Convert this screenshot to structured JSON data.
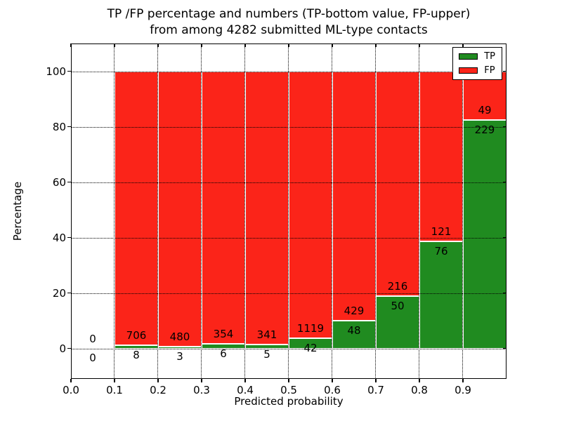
{
  "title": {
    "line1": "TP /FP percentage and numbers (TP-bottom value, FP-upper)",
    "line2": "from among 4282 submitted ML-type contacts"
  },
  "chart_data": {
    "type": "bar",
    "variant": "stacked-100-percent",
    "title": "TP /FP percentage and numbers (TP-bottom value, FP-upper)\nfrom among 4282 submitted ML-type contacts",
    "xlabel": "Predicted probability",
    "ylabel": "Percentage",
    "xlim": [
      0.0,
      1.0
    ],
    "ylim": [
      -11,
      110
    ],
    "xticks": [
      "0.0",
      "0.1",
      "0.2",
      "0.3",
      "0.4",
      "0.5",
      "0.6",
      "0.7",
      "0.8",
      "0.9"
    ],
    "yticks": [
      0,
      20,
      40,
      60,
      80,
      100
    ],
    "grid": true,
    "grid_style": "dotted",
    "total_contacts": 4282,
    "label_offset_pct": 3.5,
    "legend": {
      "position": "upper right",
      "entries": [
        {
          "label": "TP",
          "color": "#208b20"
        },
        {
          "label": "FP",
          "color": "#fb2419"
        }
      ]
    },
    "bins": [
      {
        "x_start": 0.0,
        "x_end": 0.1,
        "tp": 0,
        "fp": 0
      },
      {
        "x_start": 0.1,
        "x_end": 0.2,
        "tp": 8,
        "fp": 706
      },
      {
        "x_start": 0.2,
        "x_end": 0.3,
        "tp": 3,
        "fp": 480
      },
      {
        "x_start": 0.3,
        "x_end": 0.4,
        "tp": 6,
        "fp": 354
      },
      {
        "x_start": 0.4,
        "x_end": 0.5,
        "tp": 5,
        "fp": 341
      },
      {
        "x_start": 0.5,
        "x_end": 0.6,
        "tp": 42,
        "fp": 1119
      },
      {
        "x_start": 0.6,
        "x_end": 0.7,
        "tp": 48,
        "fp": 429
      },
      {
        "x_start": 0.7,
        "x_end": 0.8,
        "tp": 50,
        "fp": 216
      },
      {
        "x_start": 0.8,
        "x_end": 0.9,
        "tp": 76,
        "fp": 121
      },
      {
        "x_start": 0.9,
        "x_end": 1.0,
        "tp": 229,
        "fp": 49
      }
    ]
  },
  "colors": {
    "tp": "#208b20",
    "fp": "#fb2419",
    "bar_edge": "#ffffff",
    "grid": "#000000",
    "text": "#000000",
    "background": "#ffffff"
  }
}
